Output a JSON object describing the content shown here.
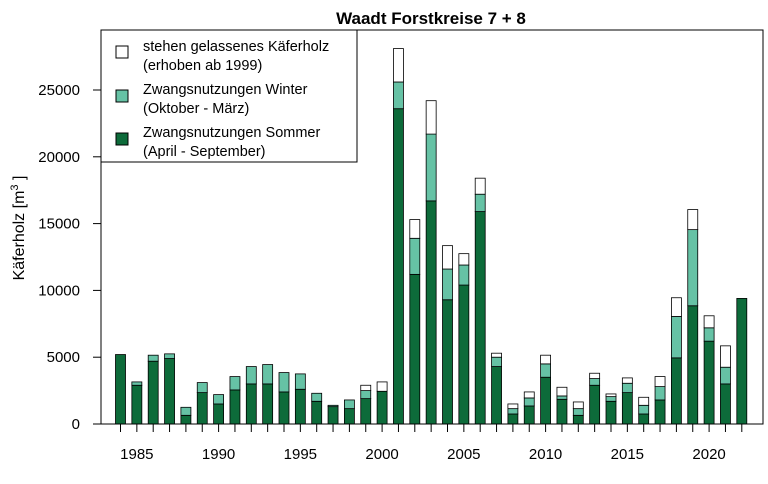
{
  "chart_data": {
    "type": "bar",
    "stacked": true,
    "title": "Waadt Forstkreise 7 + 8",
    "ylabel": "Käferholz [m",
    "ylabel_sup": "3",
    "ylabel_close": " ]",
    "xlabel": "",
    "ylim": [
      0,
      28500
    ],
    "yticks": [
      0,
      5000,
      10000,
      15000,
      20000,
      25000
    ],
    "xticks": [
      1985,
      1990,
      1995,
      2000,
      2005,
      2010,
      2015,
      2020
    ],
    "x": [
      1984,
      1985,
      1986,
      1987,
      1988,
      1989,
      1990,
      1991,
      1992,
      1993,
      1994,
      1995,
      1996,
      1997,
      1998,
      1999,
      2000,
      2001,
      2002,
      2003,
      2004,
      2005,
      2006,
      2007,
      2008,
      2009,
      2010,
      2011,
      2012,
      2013,
      2014,
      2015,
      2016,
      2017,
      2018,
      2019,
      2020,
      2021,
      2022
    ],
    "series": [
      {
        "name": "Zwangsnutzungen Sommer",
        "name_line2": "(April - September)",
        "color": "#0d6b3a",
        "values": [
          5200,
          2900,
          4700,
          4900,
          650,
          2350,
          1500,
          2550,
          3000,
          3000,
          2400,
          2600,
          1700,
          1300,
          1150,
          1900,
          2450,
          23600,
          11200,
          16700,
          9300,
          10400,
          15900,
          4300,
          750,
          1350,
          3500,
          1850,
          650,
          2900,
          1700,
          2350,
          750,
          1800,
          4950,
          8850,
          6200,
          3000,
          9400
        ]
      },
      {
        "name": "Zwangsnutzungen Winter",
        "name_line2": "(Oktober - März)",
        "color": "#66c2a5",
        "values": [
          0,
          250,
          450,
          350,
          600,
          750,
          700,
          1000,
          1300,
          1450,
          1450,
          1150,
          600,
          100,
          650,
          600,
          0,
          2000,
          2700,
          5000,
          2300,
          1500,
          1300,
          700,
          400,
          600,
          1000,
          250,
          500,
          500,
          350,
          700,
          650,
          1000,
          3100,
          5700,
          1000,
          1250,
          0
        ]
      },
      {
        "name": "stehen gelassenes Käferholz",
        "name_line2": "(erhoben ab 1999)",
        "color": "#ffffff",
        "values": [
          0,
          0,
          0,
          0,
          0,
          0,
          0,
          0,
          0,
          0,
          0,
          0,
          0,
          0,
          0,
          400,
          700,
          2500,
          1400,
          2500,
          1750,
          850,
          1200,
          300,
          350,
          450,
          650,
          650,
          500,
          400,
          200,
          400,
          600,
          750,
          1400,
          1500,
          900,
          1600,
          0
        ]
      }
    ],
    "legend_position": "top-left"
  }
}
